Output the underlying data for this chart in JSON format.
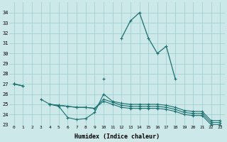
{
  "x": [
    0,
    1,
    2,
    3,
    4,
    5,
    6,
    7,
    8,
    9,
    10,
    11,
    12,
    13,
    14,
    15,
    16,
    17,
    18,
    19,
    20,
    21,
    22,
    23
  ],
  "main_line": [
    27.0,
    26.8,
    null,
    null,
    null,
    null,
    null,
    null,
    null,
    null,
    27.5,
    null,
    31.5,
    33.2,
    34.0,
    31.5,
    30.0,
    30.7,
    27.5,
    null,
    null,
    null,
    null,
    null
  ],
  "flat1": [
    27.0,
    26.8,
    null,
    25.5,
    25.0,
    24.8,
    23.7,
    23.5,
    23.6,
    24.2,
    26.0,
    25.3,
    25.1,
    25.0,
    25.0,
    25.0,
    25.0,
    24.9,
    24.7,
    24.4,
    24.3,
    24.3,
    23.4,
    23.4
  ],
  "flat2": [
    27.0,
    null,
    null,
    null,
    25.0,
    24.9,
    24.8,
    24.7,
    24.7,
    24.6,
    25.5,
    25.2,
    24.9,
    24.8,
    24.8,
    24.8,
    24.8,
    24.7,
    24.5,
    24.2,
    24.1,
    24.1,
    23.2,
    23.2
  ],
  "flat3": [
    27.0,
    null,
    null,
    null,
    25.0,
    24.9,
    24.8,
    24.7,
    24.7,
    24.6,
    25.3,
    25.0,
    24.7,
    24.6,
    24.6,
    24.6,
    24.6,
    24.5,
    24.3,
    24.0,
    23.9,
    23.9,
    23.0,
    23.0
  ],
  "color": "#1a7070",
  "bg_color": "#cce8e8",
  "grid_color": "#99cccc",
  "ylim_min": 23,
  "ylim_max": 35,
  "yticks": [
    23,
    24,
    25,
    26,
    27,
    28,
    29,
    30,
    31,
    32,
    33,
    34
  ],
  "xlabel": "Humidex (Indice chaleur)",
  "fig_w": 3.2,
  "fig_h": 2.0,
  "dpi": 100
}
